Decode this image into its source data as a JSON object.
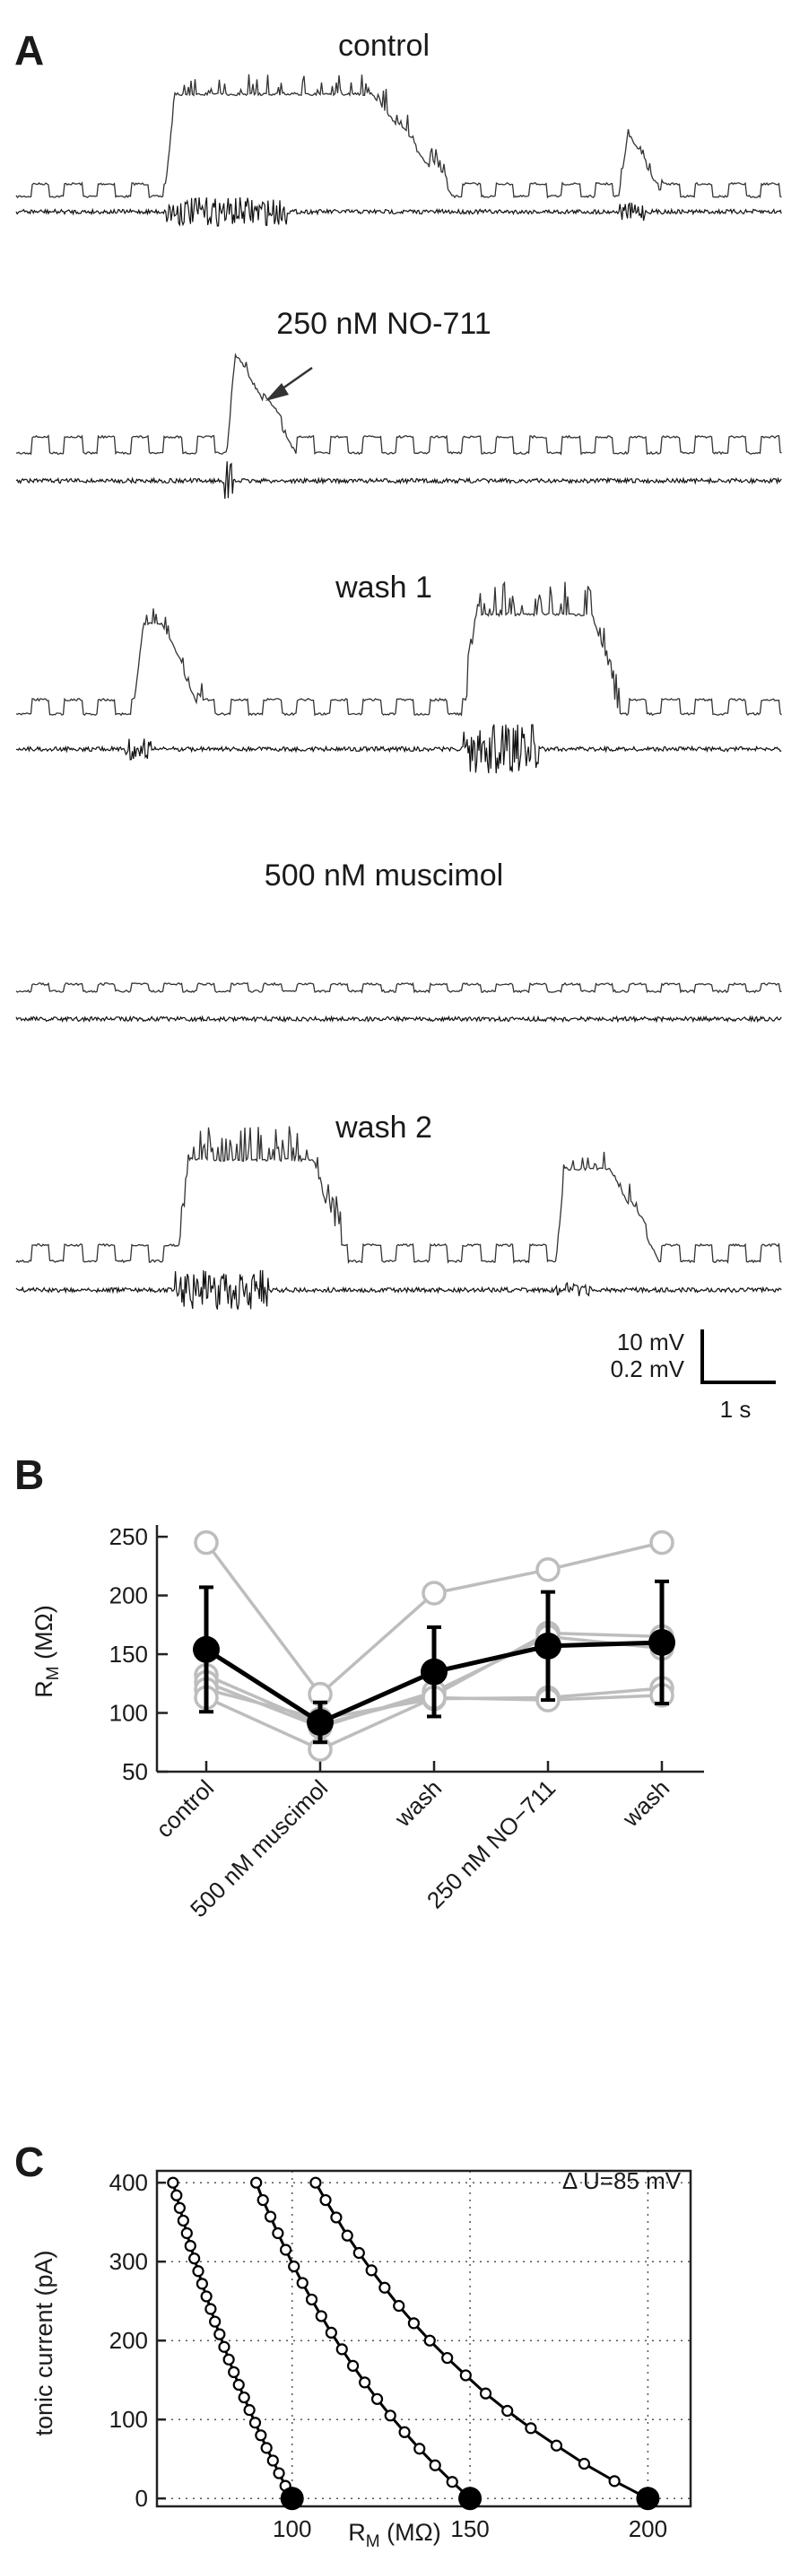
{
  "panels": {
    "A": {
      "letter": "A",
      "traces": [
        {
          "title": "control"
        },
        {
          "title": "250 nM NO-711"
        },
        {
          "title": "wash 1"
        },
        {
          "title": "500 nM muscimol"
        },
        {
          "title": "wash 2"
        }
      ],
      "scalebar": {
        "v1": "10 mV",
        "v2": "0.2 mV",
        "t": "1 s"
      }
    },
    "B": {
      "letter": "B"
    },
    "C": {
      "letter": "C"
    }
  },
  "chart_data": [
    {
      "type": "line",
      "panel": "B",
      "ylabel": "R_M (MΩ)",
      "categories": [
        "control",
        "500 nM muscimol",
        "wash",
        "250 nM NO−711",
        "wash"
      ],
      "ylim": [
        50,
        260
      ],
      "yticks": [
        50,
        100,
        150,
        200,
        250
      ],
      "series": [
        {
          "values": [
            245,
            116,
            202,
            222,
            245
          ],
          "color": "#bdbdbd"
        },
        {
          "values": [
            132,
            90,
            115,
            168,
            165
          ],
          "color": "#bdbdbd"
        },
        {
          "values": [
            126,
            88,
            118,
            165,
            155
          ],
          "color": "#bdbdbd"
        },
        {
          "values": [
            120,
            95,
            112,
            113,
            121
          ],
          "color": "#bdbdbd"
        },
        {
          "values": [
            113,
            69,
            113,
            111,
            115
          ],
          "color": "#bdbdbd"
        },
        {
          "values": [
            154,
            92,
            135,
            157,
            160
          ],
          "errors": [
            53,
            17,
            38,
            46,
            52
          ],
          "color": "#000000"
        }
      ]
    },
    {
      "type": "line",
      "panel": "C",
      "xlabel": "R_M (MΩ)",
      "ylabel": "tonic current (pA)",
      "xlim": [
        62,
        212
      ],
      "ylim": [
        -10,
        415
      ],
      "xticks": [
        100,
        150,
        200
      ],
      "yticks": [
        0,
        100,
        200,
        300,
        400
      ],
      "grid": true,
      "annotation": "Δ U=85 mV",
      "series": [
        {
          "r0": 100,
          "x": [
            100,
            98.1,
            96.3,
            94.6,
            92.8,
            91.2,
            89.6,
            88.0,
            86.5,
            85.0,
            83.6,
            82.2,
            80.9,
            79.6,
            78.3,
            77.1,
            75.9,
            74.7,
            73.6,
            72.5,
            71.4,
            70.4,
            69.4,
            68.4,
            67.5,
            66.5
          ],
          "y": [
            0,
            16,
            32,
            48,
            64,
            80,
            96,
            112,
            128,
            144,
            160,
            176,
            192,
            208,
            224,
            240,
            256,
            272,
            288,
            304,
            320,
            336,
            352,
            368,
            384,
            400
          ]
        },
        {
          "r0": 150,
          "x": [
            150,
            145.0,
            140.2,
            135.8,
            131.6,
            127.6,
            123.9,
            120.4,
            117.1,
            114.0,
            111.0,
            108.2,
            105.5,
            102.9,
            100.5,
            98.2,
            96.0,
            93.9,
            91.8,
            89.9
          ],
          "y": [
            0,
            21,
            42,
            63,
            84,
            105,
            126,
            147,
            168,
            189,
            210,
            231,
            252,
            273,
            294,
            315,
            336,
            357,
            378,
            400
          ]
        },
        {
          "r0": 200,
          "x": [
            200,
            190.6,
            182.1,
            174.3,
            167.1,
            160.5,
            154.4,
            148.8,
            143.6,
            138.7,
            134.2,
            130.0,
            126.0,
            122.3,
            118.8,
            115.5,
            112.4,
            109.4,
            106.6
          ],
          "y": [
            0,
            22,
            44,
            67,
            89,
            111,
            133,
            156,
            178,
            200,
            222,
            244,
            267,
            289,
            311,
            333,
            356,
            378,
            400
          ]
        }
      ]
    }
  ]
}
